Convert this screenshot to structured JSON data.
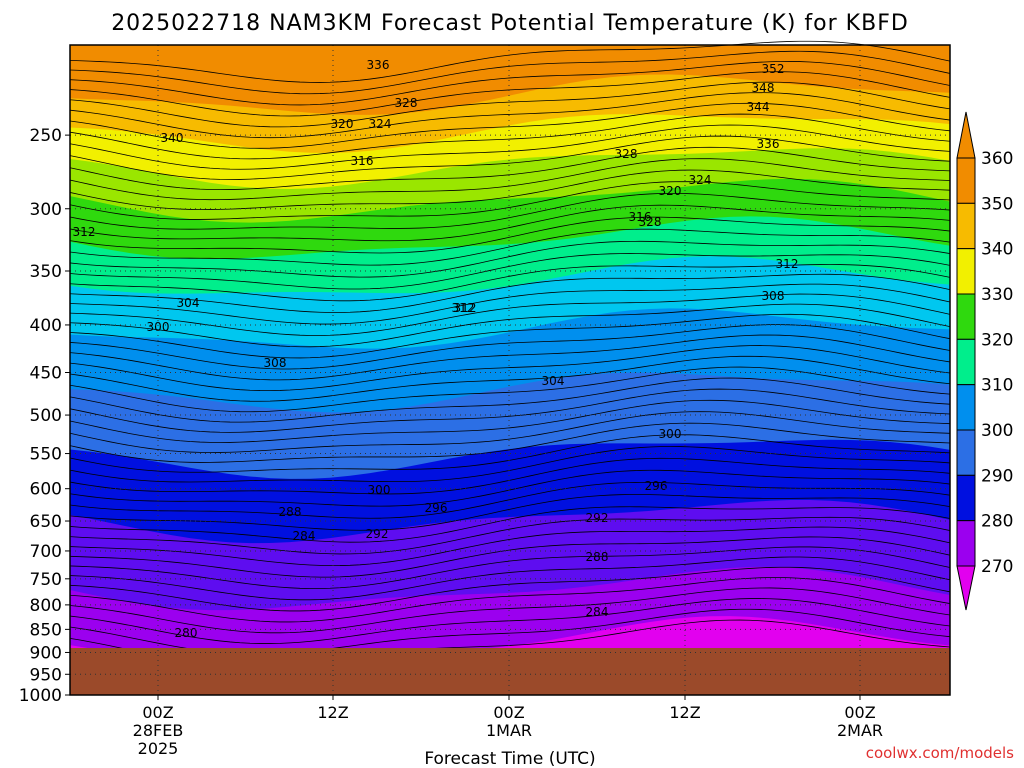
{
  "chart_data": {
    "type": "heatmap",
    "title": "2025022718 NAM3KM Forecast Potential Temperature (K) for KBFD",
    "xlabel": "Forecast Time (UTC)",
    "ylabel": "",
    "y_scale": "log-pressure",
    "y_ticks": [
      "250",
      "300",
      "350",
      "400",
      "450",
      "500",
      "550",
      "600",
      "650",
      "700",
      "750",
      "800",
      "850",
      "900",
      "950",
      "1000"
    ],
    "x_ticks": [
      {
        "lines": [
          "00Z",
          "28FEB",
          "2025"
        ]
      },
      {
        "lines": [
          "12Z"
        ]
      },
      {
        "lines": [
          "00Z",
          "1MAR"
        ]
      },
      {
        "lines": [
          "12Z"
        ]
      },
      {
        "lines": [
          "00Z",
          "2MAR"
        ]
      }
    ],
    "colorbar": {
      "ticks": [
        "360",
        "350",
        "340",
        "330",
        "320",
        "310",
        "300",
        "290",
        "280",
        "270"
      ],
      "colors": [
        "#f18c00",
        "#f7bb00",
        "#f2f000",
        "#9ae600",
        "#2fd90e",
        "#00ee8c",
        "#00c7ef",
        "#008fee",
        "#2c6fe5",
        "#0010e0",
        "#5e0df0",
        "#9b00ef",
        "#e200ef"
      ]
    },
    "contour_labels": [
      "336",
      "352",
      "348",
      "344",
      "328",
      "324",
      "320",
      "340",
      "336",
      "316",
      "328",
      "324",
      "320",
      "328",
      "316",
      "312",
      "312",
      "312",
      "308",
      "304",
      "300",
      "312",
      "308",
      "304",
      "300",
      "296",
      "288",
      "300",
      "284",
      "292",
      "296",
      "292",
      "288",
      "280",
      "284"
    ],
    "ground_color": "#9b4a2a",
    "credit": "coolwx.com/models"
  }
}
